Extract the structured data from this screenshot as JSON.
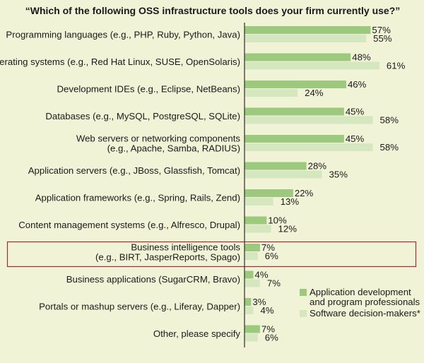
{
  "chart_data": {
    "type": "bar",
    "orientation": "horizontal",
    "title": "“Which of the following OSS infrastructure tools does your firm currently use?”",
    "xlim": [
      0,
      100
    ],
    "categories": [
      [
        "Programming languages (e.g., PHP, Ruby, Python, Java)"
      ],
      [
        "Operating systems (e.g., Red Hat Linux, SUSE, OpenSolaris)"
      ],
      [
        "Development IDEs (e.g., Eclipse, NetBeans)"
      ],
      [
        "Databases (e.g., MySQL, PostgreSQL, SQLite)"
      ],
      [
        "Web servers or networking components",
        "(e.g., Apache, Samba, RADIUS)"
      ],
      [
        "Application servers (e.g., JBoss, Glassfish, Tomcat)"
      ],
      [
        "Application frameworks (e.g., Spring, Rails, Zend)"
      ],
      [
        "Content management systems (e.g., Alfresco, Drupal)"
      ],
      [
        "Business intelligence tools",
        "(e.g., BIRT, JasperReports, Spago)"
      ],
      [
        "Business applications (SugarCRM, Bravo)"
      ],
      [
        "Portals or mashup servers (e.g., Liferay, Dapper)"
      ],
      [
        "Other, please specify"
      ]
    ],
    "highlighted_category_index": 8,
    "series": [
      {
        "name": [
          "Application development",
          "and program professionals"
        ],
        "color": "#9dc97e",
        "values": [
          57,
          48,
          46,
          45,
          45,
          28,
          22,
          10,
          7,
          4,
          3,
          7
        ],
        "labels": [
          "57%",
          "48%",
          "46%",
          "45%",
          "45%",
          "28%",
          "22%",
          "10%",
          "7%",
          "4%",
          "3%",
          "7%"
        ]
      },
      {
        "name": [
          "Software decision-makers*"
        ],
        "color": "#d5e7bf",
        "values": [
          55,
          61,
          24,
          58,
          58,
          35,
          13,
          12,
          6,
          7,
          4,
          6
        ],
        "labels": [
          "55%",
          "61%",
          "24%",
          "58%",
          "58%",
          "35%",
          "13%",
          "12%",
          "6%",
          "7%",
          "4%",
          "6%"
        ]
      }
    ],
    "colors": {
      "background": "#f1f3d6",
      "axis": "#3a3a3a",
      "highlight_border": "#9b2e3a",
      "text": "#1a1a1a"
    },
    "legend_placement": "bottom-right",
    "grid": false
  }
}
